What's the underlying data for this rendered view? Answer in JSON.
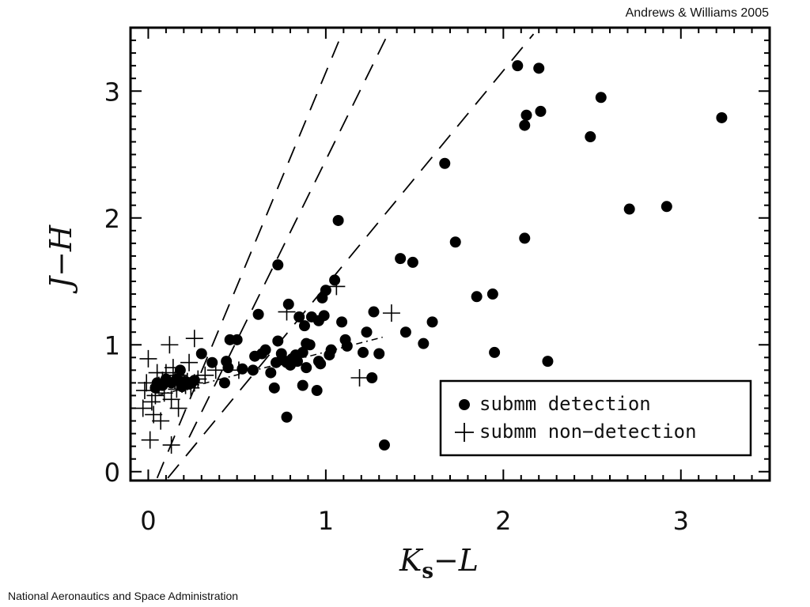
{
  "header": {
    "credit": "Andrews & Williams 2005"
  },
  "footer": {
    "text": "National Aeronautics and Space Administration"
  },
  "chart_data": {
    "type": "scatter",
    "title": "",
    "xlabel_main": "K",
    "xlabel_sub": "s",
    "xlabel_tail": "−L",
    "ylabel": "J−H",
    "xlim": [
      -0.1,
      3.5
    ],
    "ylim": [
      -0.07,
      3.5
    ],
    "x_ticks": [
      0,
      1,
      2,
      3
    ],
    "y_ticks": [
      0,
      1,
      2,
      3
    ],
    "grid": false,
    "legend_position": "lower-right",
    "series": [
      {
        "name": "submm detection",
        "marker": "filled-circle",
        "color": "#000000",
        "points": [
          [
            0.04,
            0.66
          ],
          [
            0.05,
            0.7
          ],
          [
            0.08,
            0.68
          ],
          [
            0.1,
            0.73
          ],
          [
            0.13,
            0.7
          ],
          [
            0.16,
            0.73
          ],
          [
            0.19,
            0.67
          ],
          [
            0.21,
            0.71
          ],
          [
            0.23,
            0.69
          ],
          [
            0.26,
            0.72
          ],
          [
            0.18,
            0.8
          ],
          [
            0.3,
            0.93
          ],
          [
            0.36,
            0.86
          ],
          [
            0.43,
            0.7
          ],
          [
            0.44,
            0.87
          ],
          [
            0.45,
            0.82
          ],
          [
            0.46,
            1.04
          ],
          [
            0.5,
            1.04
          ],
          [
            0.53,
            0.81
          ],
          [
            0.59,
            0.8
          ],
          [
            0.6,
            0.91
          ],
          [
            0.62,
            1.24
          ],
          [
            0.64,
            0.93
          ],
          [
            0.66,
            0.96
          ],
          [
            0.69,
            0.78
          ],
          [
            0.71,
            0.66
          ],
          [
            0.72,
            0.86
          ],
          [
            0.73,
            1.03
          ],
          [
            0.73,
            1.63
          ],
          [
            0.75,
            0.93
          ],
          [
            0.76,
            0.88
          ],
          [
            0.78,
            0.43
          ],
          [
            0.78,
            0.86
          ],
          [
            0.79,
            1.32
          ],
          [
            0.8,
            0.84
          ],
          [
            0.81,
            0.89
          ],
          [
            0.83,
            0.92
          ],
          [
            0.84,
            0.87
          ],
          [
            0.85,
            1.22
          ],
          [
            0.87,
            0.94
          ],
          [
            0.87,
            0.68
          ],
          [
            0.88,
            1.15
          ],
          [
            0.89,
            0.82
          ],
          [
            0.89,
            1.01
          ],
          [
            0.91,
            1.0
          ],
          [
            0.92,
            1.22
          ],
          [
            0.95,
            0.64
          ],
          [
            0.96,
            0.87
          ],
          [
            0.96,
            1.19
          ],
          [
            0.97,
            0.85
          ],
          [
            0.98,
            1.37
          ],
          [
            0.99,
            1.23
          ],
          [
            1.0,
            1.43
          ],
          [
            1.02,
            0.92
          ],
          [
            1.03,
            0.96
          ],
          [
            1.05,
            1.51
          ],
          [
            1.07,
            1.98
          ],
          [
            1.09,
            1.18
          ],
          [
            1.11,
            1.04
          ],
          [
            1.12,
            0.99
          ],
          [
            1.21,
            0.94
          ],
          [
            1.23,
            1.1
          ],
          [
            1.26,
            0.74
          ],
          [
            1.27,
            1.26
          ],
          [
            1.3,
            0.93
          ],
          [
            1.33,
            0.21
          ],
          [
            1.42,
            1.68
          ],
          [
            1.45,
            1.1
          ],
          [
            1.49,
            1.65
          ],
          [
            1.55,
            1.01
          ],
          [
            1.6,
            1.18
          ],
          [
            1.67,
            2.43
          ],
          [
            1.73,
            1.81
          ],
          [
            1.85,
            1.38
          ],
          [
            1.94,
            1.4
          ],
          [
            1.95,
            0.94
          ],
          [
            2.08,
            3.2
          ],
          [
            2.12,
            2.73
          ],
          [
            2.12,
            1.84
          ],
          [
            2.13,
            2.81
          ],
          [
            2.2,
            3.18
          ],
          [
            2.21,
            2.84
          ],
          [
            2.25,
            0.87
          ],
          [
            2.49,
            2.64
          ],
          [
            2.55,
            2.95
          ],
          [
            2.71,
            2.07
          ],
          [
            2.92,
            2.09
          ],
          [
            3.23,
            2.79
          ]
        ]
      },
      {
        "name": "submm non-detection",
        "marker": "plus",
        "color": "#000000",
        "points": [
          [
            -0.03,
            0.5
          ],
          [
            -0.02,
            0.64
          ],
          [
            -0.01,
            0.7
          ],
          [
            0.0,
            0.89
          ],
          [
            0.01,
            0.25
          ],
          [
            0.02,
            0.55
          ],
          [
            0.03,
            0.45
          ],
          [
            0.04,
            0.6
          ],
          [
            0.05,
            0.78
          ],
          [
            0.06,
            0.68
          ],
          [
            0.07,
            0.4
          ],
          [
            0.08,
            0.72
          ],
          [
            0.09,
            0.62
          ],
          [
            0.1,
            0.78
          ],
          [
            0.12,
            1.0
          ],
          [
            0.13,
            0.57
          ],
          [
            0.13,
            0.21
          ],
          [
            0.14,
            0.82
          ],
          [
            0.15,
            0.72
          ],
          [
            0.16,
            0.65
          ],
          [
            0.17,
            0.76
          ],
          [
            0.17,
            0.5
          ],
          [
            0.19,
            0.69
          ],
          [
            0.2,
            0.74
          ],
          [
            0.21,
            0.68
          ],
          [
            0.22,
            0.71
          ],
          [
            0.23,
            0.86
          ],
          [
            0.24,
            0.66
          ],
          [
            0.26,
            0.7
          ],
          [
            0.26,
            1.05
          ],
          [
            0.28,
            0.73
          ],
          [
            0.32,
            0.76
          ],
          [
            0.38,
            0.8
          ],
          [
            0.51,
            0.8
          ],
          [
            0.78,
            1.26
          ],
          [
            1.06,
            1.46
          ],
          [
            1.19,
            0.74
          ],
          [
            1.37,
            1.25
          ]
        ]
      }
    ],
    "reddening_lines": [
      {
        "from": [
          0.05,
          -0.05
        ],
        "to": [
          1.09,
          3.45
        ]
      },
      {
        "from": [
          0.23,
          0.27
        ],
        "to": [
          1.35,
          3.45
        ]
      },
      {
        "from": [
          0.11,
          -0.05
        ],
        "to": [
          2.17,
          3.45
        ]
      }
    ],
    "ctts_locus": {
      "from": [
        0.05,
        0.6
      ],
      "to": [
        1.32,
        1.06
      ]
    }
  },
  "legend": {
    "detection_label": "submm detection",
    "non_detection_label": "submm non−detection"
  }
}
